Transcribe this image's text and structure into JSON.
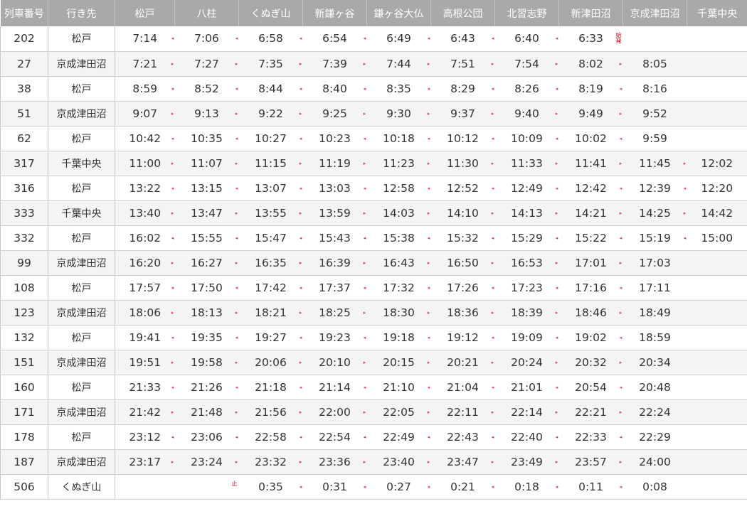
{
  "headers": [
    "列車番号",
    "行き先",
    "松戸",
    "八柱",
    "くぬぎ山",
    "新鎌ヶ谷",
    "鎌ヶ谷大仏",
    "高根公団",
    "北習志野",
    "新津田沼",
    "京成津田沼",
    "千葉中央"
  ],
  "markers": {
    "origin": "始発",
    "terminal": "止"
  },
  "colors": {
    "header_bg": "#a9a9a9",
    "arrow": "#d83878",
    "marker": "#d0021b",
    "row_alt": "#f4f4f4"
  },
  "rows": [
    {
      "num": "202",
      "dest": "松戸",
      "dir": "up",
      "times": [
        "7:14",
        "7:06",
        "6:58",
        "6:54",
        "6:49",
        "6:43",
        "6:40",
        "6:33",
        "",
        ""
      ],
      "start": 7
    },
    {
      "num": "27",
      "dest": "京成津田沼",
      "dir": "down",
      "times": [
        "7:21",
        "7:27",
        "7:35",
        "7:39",
        "7:44",
        "7:51",
        "7:54",
        "8:02",
        "8:05",
        ""
      ]
    },
    {
      "num": "38",
      "dest": "松戸",
      "dir": "up",
      "times": [
        "8:59",
        "8:52",
        "8:44",
        "8:40",
        "8:35",
        "8:29",
        "8:26",
        "8:19",
        "8:16",
        ""
      ]
    },
    {
      "num": "51",
      "dest": "京成津田沼",
      "dir": "down",
      "times": [
        "9:07",
        "9:13",
        "9:22",
        "9:25",
        "9:30",
        "9:37",
        "9:40",
        "9:49",
        "9:52",
        ""
      ]
    },
    {
      "num": "62",
      "dest": "松戸",
      "dir": "up",
      "times": [
        "10:42",
        "10:35",
        "10:27",
        "10:23",
        "10:18",
        "10:12",
        "10:09",
        "10:02",
        "9:59",
        ""
      ]
    },
    {
      "num": "317",
      "dest": "千葉中央",
      "dir": "down",
      "times": [
        "11:00",
        "11:07",
        "11:15",
        "11:19",
        "11:23",
        "11:30",
        "11:33",
        "11:41",
        "11:45",
        "12:02"
      ]
    },
    {
      "num": "316",
      "dest": "松戸",
      "dir": "up",
      "times": [
        "13:22",
        "13:15",
        "13:07",
        "13:03",
        "12:58",
        "12:52",
        "12:49",
        "12:42",
        "12:39",
        "12:20"
      ]
    },
    {
      "num": "333",
      "dest": "千葉中央",
      "dir": "down",
      "times": [
        "13:40",
        "13:47",
        "13:55",
        "13:59",
        "14:03",
        "14:10",
        "14:13",
        "14:21",
        "14:25",
        "14:42"
      ]
    },
    {
      "num": "332",
      "dest": "松戸",
      "dir": "up",
      "times": [
        "16:02",
        "15:55",
        "15:47",
        "15:43",
        "15:38",
        "15:32",
        "15:29",
        "15:22",
        "15:19",
        "15:00"
      ]
    },
    {
      "num": "99",
      "dest": "京成津田沼",
      "dir": "down",
      "times": [
        "16:20",
        "16:27",
        "16:35",
        "16:39",
        "16:43",
        "16:50",
        "16:53",
        "17:01",
        "17:03",
        ""
      ]
    },
    {
      "num": "108",
      "dest": "松戸",
      "dir": "up",
      "times": [
        "17:57",
        "17:50",
        "17:42",
        "17:37",
        "17:32",
        "17:26",
        "17:23",
        "17:16",
        "17:11",
        ""
      ]
    },
    {
      "num": "123",
      "dest": "京成津田沼",
      "dir": "down",
      "times": [
        "18:06",
        "18:13",
        "18:21",
        "18:25",
        "18:30",
        "18:36",
        "18:39",
        "18:46",
        "18:49",
        ""
      ]
    },
    {
      "num": "132",
      "dest": "松戸",
      "dir": "up",
      "times": [
        "19:41",
        "19:35",
        "19:27",
        "19:23",
        "19:18",
        "19:12",
        "19:09",
        "19:02",
        "18:59",
        ""
      ]
    },
    {
      "num": "151",
      "dest": "京成津田沼",
      "dir": "down",
      "times": [
        "19:51",
        "19:58",
        "20:06",
        "20:10",
        "20:15",
        "20:21",
        "20:24",
        "20:32",
        "20:34",
        ""
      ]
    },
    {
      "num": "160",
      "dest": "松戸",
      "dir": "up",
      "times": [
        "21:33",
        "21:26",
        "21:18",
        "21:14",
        "21:10",
        "21:04",
        "21:01",
        "20:54",
        "20:48",
        ""
      ]
    },
    {
      "num": "171",
      "dest": "京成津田沼",
      "dir": "down",
      "times": [
        "21:42",
        "21:48",
        "21:56",
        "22:00",
        "22:05",
        "22:11",
        "22:14",
        "22:21",
        "22:24",
        ""
      ]
    },
    {
      "num": "178",
      "dest": "松戸",
      "dir": "up",
      "times": [
        "23:12",
        "23:06",
        "22:58",
        "22:54",
        "22:49",
        "22:43",
        "22:40",
        "22:33",
        "22:29",
        ""
      ]
    },
    {
      "num": "187",
      "dest": "京成津田沼",
      "dir": "down",
      "times": [
        "23:17",
        "23:24",
        "23:32",
        "23:36",
        "23:40",
        "23:47",
        "23:49",
        "23:57",
        "24:00",
        ""
      ]
    },
    {
      "num": "506",
      "dest": "くぬぎ山",
      "dir": "up",
      "times": [
        "",
        "",
        "0:35",
        "0:31",
        "0:27",
        "0:21",
        "0:18",
        "0:11",
        "0:08",
        ""
      ],
      "end": 1
    }
  ]
}
